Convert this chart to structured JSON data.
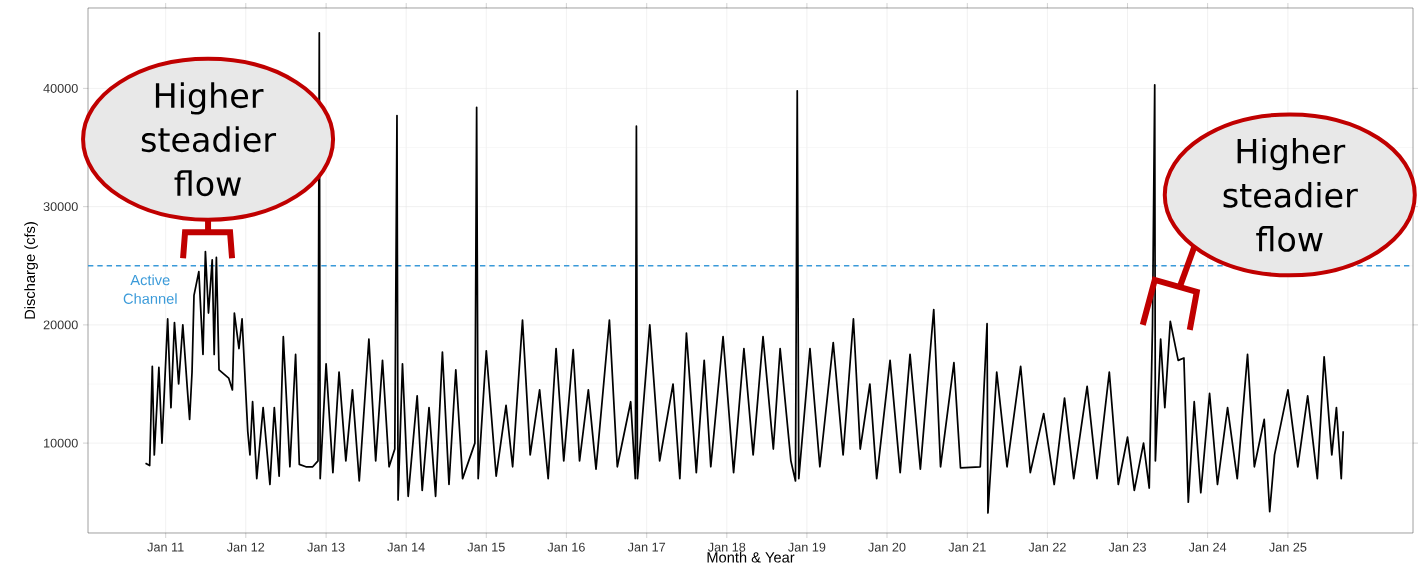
{
  "chart_data": {
    "type": "line",
    "xlabel": "Month & Year",
    "ylabel": "Discharge (cfs)",
    "xlim": [
      "2010-01-12",
      "2026-07-25"
    ],
    "ylim": [
      2400,
      46800
    ],
    "xticks": [
      {
        "value": "2011-01-01",
        "label": "Jan 11"
      },
      {
        "value": "2012-01-01",
        "label": "Jan 12"
      },
      {
        "value": "2013-01-01",
        "label": "Jan 13"
      },
      {
        "value": "2014-01-01",
        "label": "Jan 14"
      },
      {
        "value": "2015-01-01",
        "label": "Jan 15"
      },
      {
        "value": "2016-01-01",
        "label": "Jan 16"
      },
      {
        "value": "2017-01-01",
        "label": "Jan 17"
      },
      {
        "value": "2018-01-01",
        "label": "Jan 18"
      },
      {
        "value": "2019-01-01",
        "label": "Jan 19"
      },
      {
        "value": "2020-01-01",
        "label": "Jan 20"
      },
      {
        "value": "2021-01-01",
        "label": "Jan 21"
      },
      {
        "value": "2022-01-01",
        "label": "Jan 22"
      },
      {
        "value": "2023-01-01",
        "label": "Jan 23"
      },
      {
        "value": "2024-01-01",
        "label": "Jan 24"
      },
      {
        "value": "2025-01-01",
        "label": "Jan 25"
      }
    ],
    "yticks": [
      10000,
      20000,
      30000,
      40000
    ],
    "grid": true,
    "legend": false,
    "marker": "none",
    "line_style": "solid",
    "ref_lines": [
      {
        "axis": "y",
        "value": 25000,
        "label": "Active Channel",
        "color": "#3a9ad9",
        "line_style": "dashed"
      }
    ],
    "annotations": [
      "Higher steadier flow",
      "Higher steadier flow"
    ],
    "series": [
      {
        "color": "#000000",
        "x": [
          "2010-10-01",
          "2010-10-20",
          "2010-11-01",
          "2010-11-10",
          "2010-12-01",
          "2010-12-15",
          "2011-01-10",
          "2011-01-25",
          "2011-02-10",
          "2011-03-01",
          "2011-03-20",
          "2011-04-10",
          "2011-04-20",
          "2011-05-01",
          "2011-05-10",
          "2011-06-01",
          "2011-06-20",
          "2011-07-01",
          "2011-07-15",
          "2011-08-01",
          "2011-08-10",
          "2011-08-20",
          "2011-09-01",
          "2011-10-15",
          "2011-11-01",
          "2011-11-10",
          "2011-12-01",
          "2011-12-15",
          "2012-01-10",
          "2012-01-20",
          "2012-02-01",
          "2012-02-20",
          "2012-03-20",
          "2012-04-20",
          "2012-05-10",
          "2012-06-01",
          "2012-06-20",
          "2012-07-20",
          "2012-08-15",
          "2012-09-01",
          "2012-10-01",
          "2012-11-01",
          "2012-11-25",
          "2012-12-01",
          "2012-12-05",
          "2013-01-01",
          "2013-02-01",
          "2013-03-01",
          "2013-04-01",
          "2013-05-01",
          "2013-06-01",
          "2013-07-15",
          "2013-08-15",
          "2013-09-15",
          "2013-10-15",
          "2013-11-10",
          "2013-11-20",
          "2013-11-25",
          "2013-12-15",
          "2014-01-10",
          "2014-02-20",
          "2014-03-15",
          "2014-04-15",
          "2014-05-15",
          "2014-06-15",
          "2014-07-15",
          "2014-08-15",
          "2014-09-15",
          "2014-11-10",
          "2014-11-18",
          "2014-11-25",
          "2015-01-01",
          "2015-02-15",
          "2015-04-01",
          "2015-05-01",
          "2015-06-15",
          "2015-07-20",
          "2015-09-01",
          "2015-10-10",
          "2015-11-15",
          "2015-12-20",
          "2016-02-01",
          "2016-03-01",
          "2016-04-10",
          "2016-05-15",
          "2016-07-15",
          "2016-08-20",
          "2016-10-20",
          "2016-11-10",
          "2016-11-15",
          "2016-11-20",
          "2017-01-15",
          "2017-03-01",
          "2017-05-01",
          "2017-06-01",
          "2017-07-01",
          "2017-08-15",
          "2017-09-20",
          "2017-10-20",
          "2017-12-15",
          "2018-02-01",
          "2018-03-20",
          "2018-05-01",
          "2018-06-15",
          "2018-08-01",
          "2018-09-01",
          "2018-10-20",
          "2018-11-10",
          "2018-11-18",
          "2018-11-25",
          "2019-01-15",
          "2019-03-01",
          "2019-05-01",
          "2019-06-15",
          "2019-08-01",
          "2019-09-01",
          "2019-10-15",
          "2019-11-15",
          "2020-01-15",
          "2020-03-01",
          "2020-04-15",
          "2020-06-01",
          "2020-08-01",
          "2020-09-01",
          "2020-11-01",
          "2020-12-01",
          "2021-03-01",
          "2021-04-01",
          "2021-04-05",
          "2021-05-15",
          "2021-07-01",
          "2021-09-01",
          "2021-10-15",
          "2021-12-15",
          "2022-02-01",
          "2022-03-20",
          "2022-05-01",
          "2022-07-01",
          "2022-08-15",
          "2022-10-10",
          "2022-11-20",
          "2023-01-01",
          "2023-02-01",
          "2023-03-15",
          "2023-04-10",
          "2023-04-25",
          "2023-05-05",
          "2023-05-08",
          "2023-06-01",
          "2023-06-20",
          "2023-07-15",
          "2023-08-20",
          "2023-09-15",
          "2023-10-05",
          "2023-11-01",
          "2023-12-01",
          "2024-01-10",
          "2024-02-15",
          "2024-04-01",
          "2024-05-15",
          "2024-07-01",
          "2024-08-01",
          "2024-09-15",
          "2024-10-10",
          "2024-11-01",
          "2025-01-01",
          "2025-02-15",
          "2025-04-01",
          "2025-05-15",
          "2025-06-15",
          "2025-07-20",
          "2025-08-10",
          "2025-09-01",
          "2025-09-10"
        ],
        "values": [
          8300,
          8100,
          16500,
          9000,
          16400,
          10000,
          20500,
          13000,
          20200,
          15000,
          20000,
          14500,
          12000,
          16000,
          22500,
          24500,
          17500,
          26200,
          21000,
          25500,
          17500,
          25700,
          16200,
          15500,
          14500,
          21000,
          18000,
          20500,
          11000,
          9000,
          13500,
          7000,
          13000,
          6500,
          13000,
          7200,
          19000,
          8000,
          17500,
          8200,
          8000,
          8000,
          8500,
          44700,
          7000,
          16700,
          7500,
          16000,
          8500,
          14500,
          6800,
          18800,
          8500,
          17000,
          8000,
          9500,
          37700,
          5200,
          16700,
          5500,
          14000,
          6000,
          13000,
          5500,
          17700,
          6500,
          16200,
          7000,
          10000,
          38400,
          7000,
          17800,
          7200,
          13200,
          8000,
          20400,
          9000,
          14500,
          7000,
          18000,
          8500,
          17900,
          8500,
          14500,
          7800,
          20400,
          8000,
          13500,
          7000,
          36800,
          7000,
          20000,
          8500,
          15000,
          7000,
          19300,
          7500,
          17000,
          8000,
          19000,
          7500,
          18000,
          9000,
          19000,
          9500,
          18000,
          8500,
          6800,
          39800,
          7000,
          18000,
          8000,
          18500,
          9000,
          20500,
          9500,
          15000,
          7000,
          17000,
          7500,
          17500,
          7800,
          21300,
          8000,
          16800,
          7900,
          8000,
          20100,
          4100,
          16000,
          8000,
          16500,
          7500,
          12500,
          6500,
          13800,
          7000,
          14800,
          7000,
          16000,
          6500,
          10500,
          6000,
          10000,
          6200,
          20000,
          40300,
          8500,
          18800,
          13000,
          20300,
          17000,
          17200,
          5000,
          13500,
          5800,
          14200,
          6500,
          13000,
          7000,
          17500,
          8000,
          12000,
          4200,
          9000,
          14500,
          8000,
          14000,
          7000,
          17300,
          9000,
          13000,
          7000,
          11000
        ]
      }
    ]
  }
}
